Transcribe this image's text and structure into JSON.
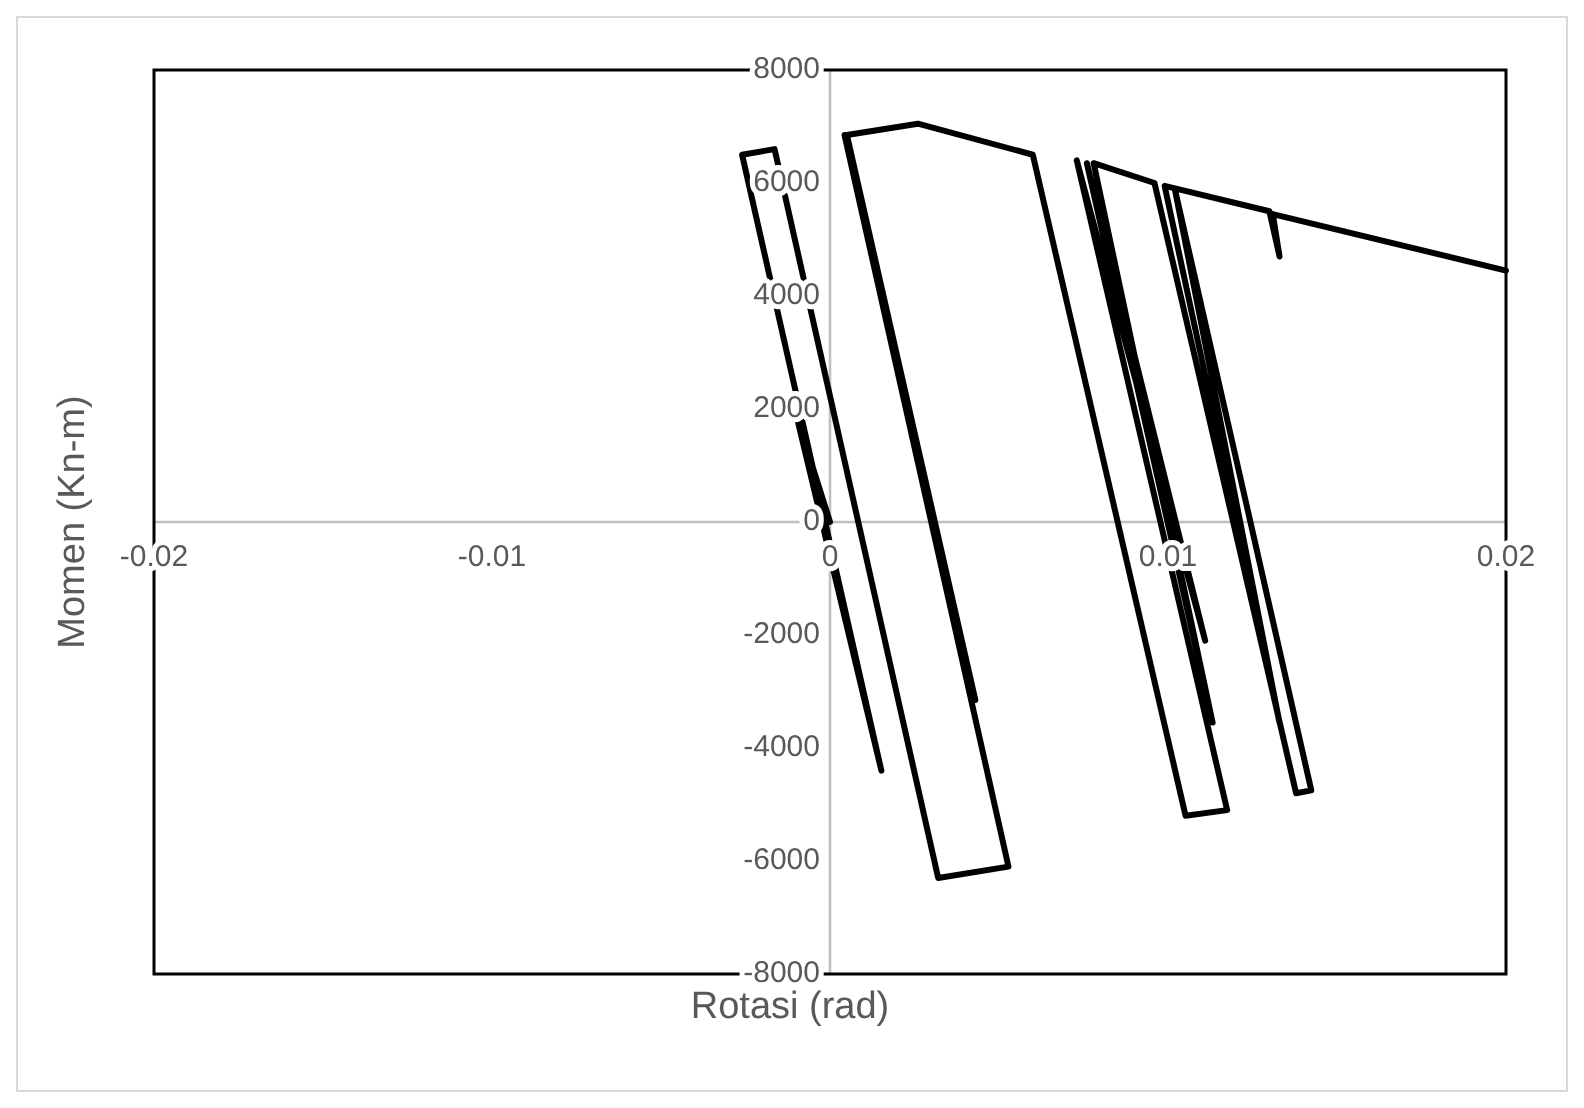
{
  "chart_data": {
    "type": "line",
    "xlabel": "Rotasi (rad)",
    "ylabel": "Momen (Kn-m)",
    "xlim": [
      -0.02,
      0.02
    ],
    "xticks": [
      -0.02,
      -0.01,
      0,
      0.01,
      0.02
    ],
    "ylim": [
      -8000,
      8000
    ],
    "yticks": [
      -8000,
      -6000,
      -4000,
      -2000,
      0,
      2000,
      4000,
      6000,
      8000
    ],
    "grid": false,
    "marker": "none",
    "line_style": "solid",
    "series": [
      {
        "color": "#000000",
        "x": [
          0,
          -0.001,
          0.00152,
          -0.0026,
          -0.00164,
          0.0032,
          0.00528,
          0.00043,
          0.0043,
          0.0005,
          0.0026,
          0.006,
          0.01052,
          0.01175,
          0.0073,
          0.0111,
          0.0076,
          0.01132,
          0.0078,
          0.0096,
          0.01379,
          0.01424,
          0.0102,
          0.0133,
          0.0099,
          0.013,
          0.0133,
          0.0131,
          0.02
        ],
        "values": [
          0,
          1900,
          -4400,
          6500,
          6600,
          -6300,
          -6100,
          6850,
          -3150,
          6850,
          7050,
          6500,
          -5200,
          -5100,
          6400,
          -2100,
          6350,
          -3550,
          6350,
          6000,
          -4800,
          -4750,
          5900,
          -3550,
          5950,
          5500,
          4700,
          5450,
          4450
        ]
      }
    ]
  }
}
